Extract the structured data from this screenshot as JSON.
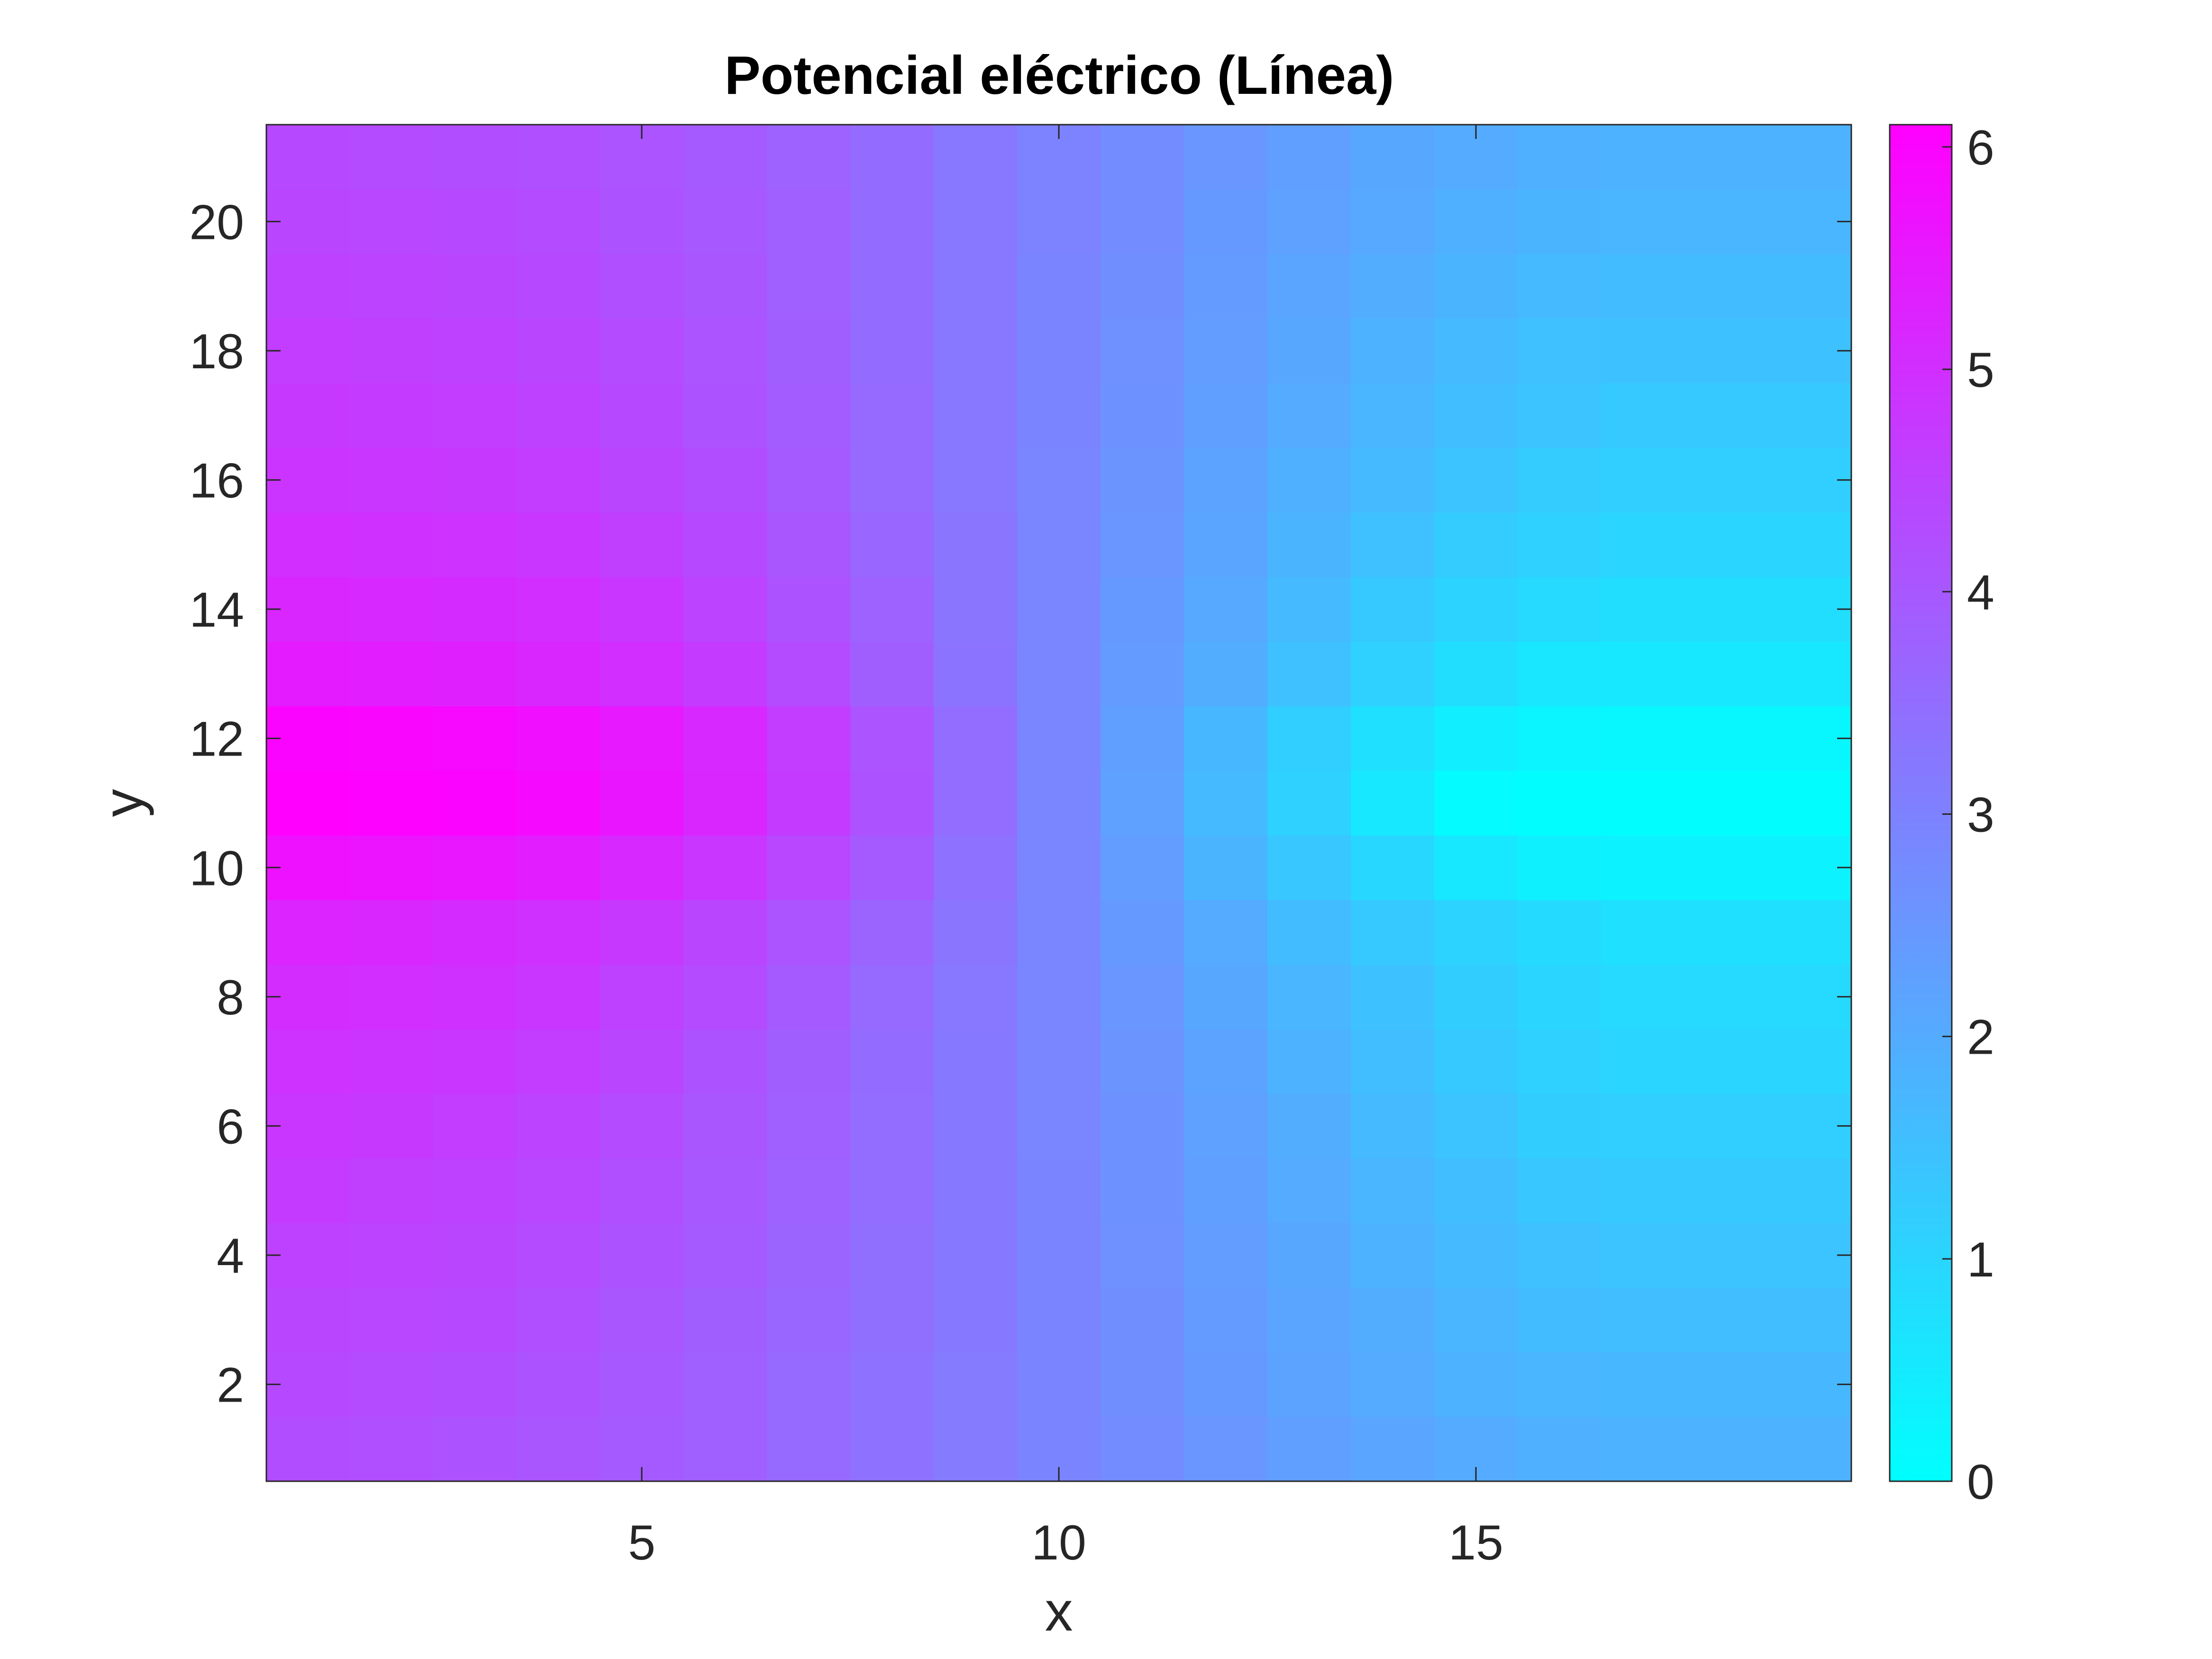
{
  "chart_data": {
    "type": "heatmap",
    "title": "Potencial eléctrico (Línea)",
    "xlabel": "x",
    "ylabel": "y",
    "xlim": [
      0.5,
      19.5
    ],
    "ylim": [
      0.5,
      21.5
    ],
    "xticks": [
      5,
      10,
      15
    ],
    "yticks": [
      2,
      4,
      6,
      8,
      10,
      12,
      14,
      16,
      18,
      20
    ],
    "x": [
      1,
      2,
      3,
      4,
      5,
      6,
      7,
      8,
      9,
      10,
      11,
      12,
      13,
      14,
      15,
      16,
      17,
      18,
      19
    ],
    "y": [
      1,
      2,
      3,
      4,
      5,
      6,
      7,
      8,
      9,
      10,
      11,
      12,
      13,
      14,
      15,
      16,
      17,
      18,
      19,
      20,
      21
    ],
    "colormap": "cool",
    "colormap_low": "#00ffff",
    "colormap_high": "#ff00ff",
    "clim": [
      0,
      6.1
    ],
    "colorbar": {
      "ticks": [
        0,
        1,
        2,
        3,
        4,
        5,
        6
      ],
      "location": "right"
    },
    "z": [
      [
        4.25,
        4.2,
        4.15,
        4.05,
        3.95,
        3.8,
        3.6,
        3.4,
        3.15,
        2.95,
        2.75,
        2.5,
        2.3,
        2.15,
        2.0,
        1.9,
        1.85,
        1.85,
        1.85
      ],
      [
        4.35,
        4.3,
        4.25,
        4.15,
        4.0,
        3.8,
        3.6,
        3.4,
        3.15,
        2.95,
        2.7,
        2.45,
        2.2,
        2.0,
        1.85,
        1.75,
        1.7,
        1.7,
        1.7
      ],
      [
        4.45,
        4.4,
        4.35,
        4.2,
        4.05,
        3.85,
        3.65,
        3.45,
        3.2,
        2.95,
        2.7,
        2.4,
        2.15,
        1.95,
        1.75,
        1.6,
        1.55,
        1.55,
        1.55
      ],
      [
        4.55,
        4.5,
        4.45,
        4.3,
        4.15,
        3.95,
        3.7,
        3.45,
        3.2,
        2.95,
        2.65,
        2.35,
        2.1,
        1.85,
        1.65,
        1.5,
        1.4,
        1.4,
        1.4
      ],
      [
        4.7,
        4.6,
        4.55,
        4.4,
        4.2,
        4.0,
        3.75,
        3.5,
        3.2,
        2.95,
        2.6,
        2.3,
        2.0,
        1.75,
        1.55,
        1.35,
        1.3,
        1.3,
        1.3
      ],
      [
        4.8,
        4.75,
        4.65,
        4.5,
        4.3,
        4.05,
        3.8,
        3.5,
        3.2,
        2.9,
        2.6,
        2.25,
        1.95,
        1.65,
        1.4,
        1.2,
        1.15,
        1.15,
        1.15
      ],
      [
        4.9,
        4.85,
        4.8,
        4.65,
        4.45,
        4.15,
        3.85,
        3.55,
        3.2,
        2.9,
        2.55,
        2.2,
        1.85,
        1.55,
        1.3,
        1.1,
        1.0,
        1.0,
        1.0
      ],
      [
        5.05,
        5.0,
        4.95,
        4.8,
        4.55,
        4.3,
        3.95,
        3.6,
        3.25,
        2.9,
        2.5,
        2.1,
        1.75,
        1.45,
        1.2,
        1.0,
        0.9,
        0.9,
        0.9
      ],
      [
        5.25,
        5.2,
        5.1,
        4.95,
        4.75,
        4.45,
        4.1,
        3.7,
        3.3,
        2.9,
        2.45,
        2.0,
        1.6,
        1.3,
        1.05,
        0.85,
        0.75,
        0.75,
        0.75
      ],
      [
        5.7,
        5.65,
        5.55,
        5.4,
        5.15,
        4.8,
        4.4,
        3.95,
        3.4,
        2.9,
        2.35,
        1.8,
        1.35,
        0.95,
        0.55,
        0.35,
        0.3,
        0.3,
        0.3
      ],
      [
        6.1,
        6.05,
        6.0,
        5.85,
        5.6,
        5.2,
        4.7,
        4.15,
        3.5,
        2.9,
        2.25,
        1.65,
        1.1,
        0.55,
        0.1,
        0.05,
        0.05,
        0.05,
        0.05
      ],
      [
        6.0,
        5.95,
        5.9,
        5.75,
        5.5,
        5.15,
        4.65,
        4.1,
        3.5,
        2.9,
        2.3,
        1.7,
        1.15,
        0.75,
        0.4,
        0.25,
        0.2,
        0.2,
        0.2
      ],
      [
        5.45,
        5.4,
        5.35,
        5.2,
        5.0,
        4.7,
        4.3,
        3.85,
        3.35,
        2.9,
        2.4,
        1.95,
        1.5,
        1.1,
        0.8,
        0.6,
        0.55,
        0.55,
        0.55
      ],
      [
        5.2,
        5.15,
        5.1,
        5.0,
        4.8,
        4.5,
        4.15,
        3.75,
        3.3,
        2.9,
        2.45,
        2.05,
        1.65,
        1.3,
        1.05,
        0.9,
        0.8,
        0.8,
        0.8
      ],
      [
        5.0,
        4.95,
        4.9,
        4.8,
        4.6,
        4.35,
        4.05,
        3.65,
        3.3,
        2.9,
        2.5,
        2.15,
        1.8,
        1.5,
        1.25,
        1.1,
        1.0,
        1.0,
        1.0
      ],
      [
        4.85,
        4.8,
        4.75,
        4.65,
        4.45,
        4.25,
        3.95,
        3.6,
        3.25,
        2.9,
        2.55,
        2.2,
        1.9,
        1.65,
        1.4,
        1.25,
        1.15,
        1.15,
        1.15
      ],
      [
        4.75,
        4.7,
        4.65,
        4.55,
        4.35,
        4.15,
        3.9,
        3.6,
        3.25,
        2.95,
        2.6,
        2.3,
        2.0,
        1.75,
        1.55,
        1.4,
        1.3,
        1.3,
        1.3
      ],
      [
        4.65,
        4.6,
        4.55,
        4.45,
        4.3,
        4.1,
        3.85,
        3.55,
        3.25,
        2.95,
        2.65,
        2.35,
        2.1,
        1.85,
        1.65,
        1.5,
        1.45,
        1.45,
        1.45
      ],
      [
        4.55,
        4.5,
        4.45,
        4.35,
        4.2,
        4.05,
        3.8,
        3.55,
        3.25,
        2.95,
        2.7,
        2.4,
        2.15,
        1.95,
        1.8,
        1.65,
        1.6,
        1.6,
        1.6
      ],
      [
        4.45,
        4.4,
        4.35,
        4.3,
        4.15,
        4.0,
        3.8,
        3.55,
        3.25,
        3.0,
        2.75,
        2.45,
        2.25,
        2.05,
        1.9,
        1.8,
        1.75,
        1.75,
        1.75
      ],
      [
        4.35,
        4.3,
        4.25,
        4.2,
        4.1,
        3.95,
        3.75,
        3.55,
        3.25,
        3.0,
        2.75,
        2.5,
        2.3,
        2.1,
        2.0,
        1.9,
        1.85,
        1.85,
        1.85
      ]
    ]
  }
}
